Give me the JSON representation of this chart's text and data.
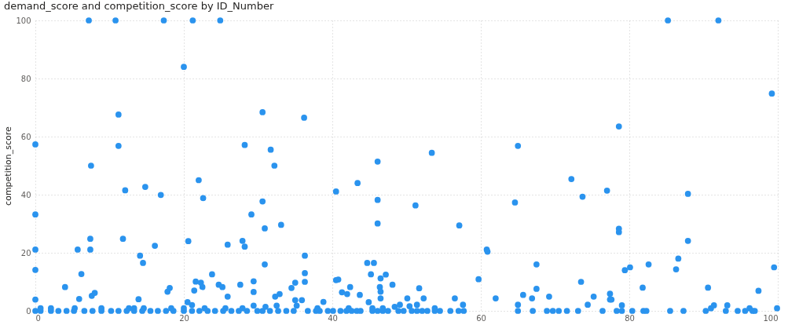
{
  "chart_data": {
    "type": "scatter",
    "title": "demand_score and competition_score by ID_Number",
    "ylabel": "competition_score",
    "xlim": [
      0,
      100
    ],
    "ylim": [
      0,
      100
    ],
    "xticks": [
      0,
      20,
      40,
      60,
      80,
      100
    ],
    "yticks": [
      0,
      20,
      40,
      60,
      80,
      100
    ],
    "grid": true,
    "marker": "circle",
    "legend": false,
    "series": [
      {
        "color": "#2a93ee",
        "x": [
          7.2,
          10.8,
          17.3,
          21.2,
          24.9,
          85.2,
          92.0,
          20.0,
          11.2,
          0,
          11.2,
          7.5,
          28.2,
          30.6,
          36.2,
          31.7,
          32.2,
          46.1,
          53.4,
          65.0,
          78.6,
          99.2,
          0,
          0,
          0,
          0,
          4.0,
          5.7,
          5.9,
          6.2,
          7.4,
          7.4,
          7.6,
          8.0,
          12.1,
          11.8,
          14.8,
          14.1,
          14.5,
          13.9,
          16.1,
          16.9,
          18.1,
          17.8,
          20.6,
          20.5,
          21.4,
          21.6,
          22.0,
          22.6,
          22.3,
          22.5,
          23.8,
          24.7,
          25.2,
          25.9,
          25.9,
          27.6,
          27.9,
          28.2,
          29.1,
          29.4,
          29.4,
          30.6,
          30.9,
          30.9,
          29.4,
          33.1,
          36.3,
          36.3,
          36.3,
          35.0,
          34.5,
          32.9,
          32.3,
          35.0,
          35.9,
          38.8,
          40.5,
          40.5,
          40.8,
          43.4,
          41.3,
          42.0,
          42.4,
          43.7,
          44.7,
          45.6,
          45.2,
          46.1,
          46.1,
          46.5,
          47.2,
          46.4,
          46.5,
          46.5,
          44.9,
          48.1,
          51.2,
          51.7,
          52.3,
          50.1,
          49.1,
          51.4,
          50.4,
          57.1,
          56.5,
          57.6,
          59.7,
          60.8,
          60.9,
          62.0,
          64.6,
          65.0,
          65.7,
          72.2,
          73.7,
          77.0,
          78.6,
          78.6,
          87.9,
          87.9,
          67.5,
          67.5,
          66.9,
          69.2,
          73.5,
          75.2,
          74.4,
          77.4,
          77.4,
          77.6,
          79.0,
          79.4,
          80.1,
          81.8,
          82.6,
          86.3,
          86.6,
          90.6,
          91.0,
          91.4,
          93.2,
          96.2,
          97.4,
          99.5,
          99.9,
          0,
          0.7,
          2.1,
          3.1,
          4.2,
          5.2,
          6.6,
          7.7,
          8.9,
          10.2,
          11.2,
          12.3,
          13.3,
          14.4,
          15.5,
          16.5,
          17.6,
          18.6,
          20.0,
          21.1,
          22.1,
          23.2,
          24.2,
          25.3,
          26.4,
          27.4,
          28.5,
          29.9,
          0.7,
          2.1,
          5.3,
          8.9,
          12.6,
          13.3,
          14.6,
          18.3,
          20.0,
          21.1,
          22.8,
          25.6,
          27.9,
          30.6,
          31.6,
          32.7,
          33.8,
          34.8,
          36.7,
          37.8,
          38.3,
          39.4,
          40.1,
          41.1,
          41.9,
          42.6,
          43.3,
          43.8,
          45.4,
          46.1,
          46.8,
          47.5,
          48.9,
          49.6,
          50.7,
          51.4,
          52.1,
          52.8,
          53.8,
          54.5,
          55.9,
          57.0,
          57.7,
          31.0,
          32.5,
          35.2,
          38.0,
          42.2,
          45.4,
          46.8,
          48.4,
          53.8,
          65.0,
          67.0,
          68.9,
          69.7,
          70.5,
          71.6,
          73.1,
          76.4,
          78.3,
          79.0,
          80.4,
          81.9,
          82.3,
          85.5,
          87.3,
          90.3,
          93.0,
          94.6,
          95.6,
          96.6,
          96.9
        ],
        "values": [
          100,
          100,
          100,
          100,
          100,
          100,
          100,
          84,
          67.6,
          57.3,
          56.8,
          50,
          57.1,
          68.4,
          66.5,
          55.5,
          50,
          51.4,
          54.4,
          56.8,
          63.5,
          74.8,
          33.2,
          21.1,
          14.1,
          3.9,
          8.2,
          21.1,
          4.1,
          12.7,
          24.8,
          21.1,
          5.2,
          6.2,
          41.5,
          24.8,
          42.7,
          19.0,
          16.5,
          4.0,
          22.4,
          39.9,
          7.9,
          6.6,
          24.0,
          3.0,
          7.0,
          10.1,
          45.0,
          38.8,
          9.7,
          8.2,
          12.6,
          9.0,
          8.2,
          22.8,
          4.9,
          9.0,
          24.1,
          22.1,
          33.2,
          10.2,
          6.5,
          37.7,
          28.4,
          16.0,
          1.8,
          29.6,
          19.0,
          13.0,
          10.0,
          9.7,
          7.9,
          5.8,
          4.9,
          3.7,
          3.7,
          3.1,
          41.1,
          10.6,
          10.8,
          44.0,
          6.4,
          5.8,
          8.2,
          5.5,
          16.5,
          16.5,
          12.6,
          38.2,
          30.1,
          11.2,
          12.5,
          8.2,
          6.6,
          4.3,
          3.0,
          9.0,
          36.3,
          7.8,
          4.3,
          4.3,
          2.1,
          2.1,
          1.6,
          29.4,
          4.3,
          2.1,
          10.9,
          21.1,
          20.4,
          4.3,
          37.3,
          2.1,
          5.5,
          45.4,
          39.3,
          41.4,
          28.3,
          27.1,
          40.3,
          24.1,
          16.0,
          7.6,
          4.3,
          4.9,
          10.0,
          4.9,
          2.1,
          5.9,
          3.9,
          3.9,
          1.9,
          14.0,
          15.0,
          8.0,
          16.0,
          14.3,
          18.0,
          8.0,
          0.9,
          1.9,
          1.9,
          0.9,
          6.9,
          15.0,
          0.9,
          0,
          0,
          0,
          0,
          0,
          0,
          0,
          0,
          0,
          0,
          0,
          0,
          0,
          0,
          0,
          0,
          0,
          0,
          0,
          0,
          0,
          0,
          0,
          0,
          0,
          0,
          0,
          0,
          0.9,
          0.9,
          0.9,
          0.9,
          0.9,
          0.9,
          0.9,
          0.9,
          0.9,
          2.0,
          0.9,
          0.9,
          0.9,
          0,
          0,
          0,
          0,
          0,
          0,
          0,
          0,
          0,
          0,
          0,
          0,
          0,
          0,
          0,
          0,
          0,
          0,
          0,
          0,
          0,
          0,
          0,
          0,
          0,
          0,
          0,
          0,
          0,
          0,
          1.4,
          1.8,
          1.8,
          0.9,
          0.9,
          0.9,
          0.9,
          1.4,
          0.9,
          0,
          0,
          0,
          0,
          0,
          0,
          0,
          0,
          0,
          0,
          0,
          0,
          0,
          0,
          0,
          0,
          0,
          0,
          0,
          0,
          0
        ]
      }
    ]
  }
}
